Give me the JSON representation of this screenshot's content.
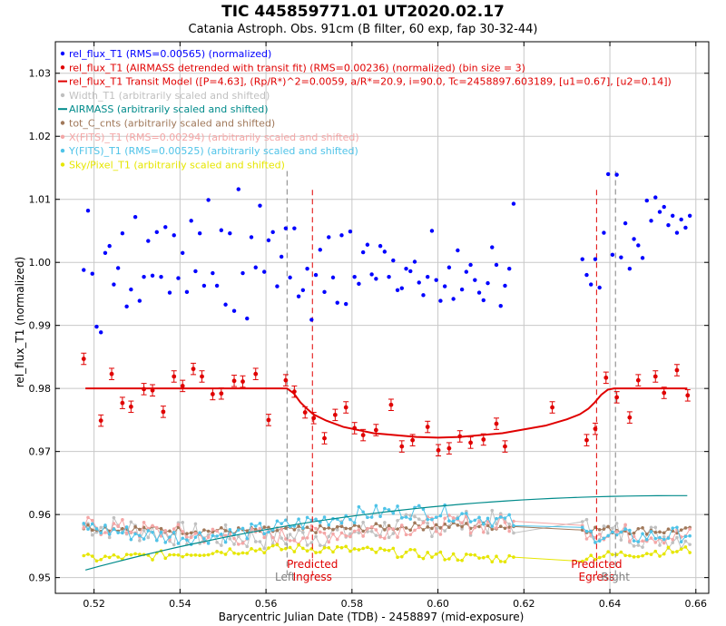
{
  "chart_data": {
    "type": "scatter",
    "title": "TIC 445859771.01    UT2020.02.17",
    "subtitle": "Catania Astroph. Obs. 91cm (B filter, 60 exp, fap 30-32-44)",
    "xlabel": "Barycentric Julian Date (TDB) - 2458897 (mid-exposure)",
    "ylabel": "rel_flux_T1 (normalized)",
    "xlim": [
      0.511,
      0.663
    ],
    "ylim": [
      0.9475,
      1.035
    ],
    "x_ticks": [
      "0.52",
      "0.54",
      "0.56",
      "0.58",
      "0.60",
      "0.62",
      "0.64",
      "0.66"
    ],
    "y_ticks": [
      "0.95",
      "0.96",
      "0.97",
      "0.98",
      "0.99",
      "1.00",
      "1.01",
      "1.02",
      "1.03"
    ],
    "grid": true,
    "legend_position": "top-left",
    "legend": [
      {
        "label": "rel_flux_T1 (RMS=0.00565) (normalized)",
        "color": "#0000ff",
        "marker": "dot"
      },
      {
        "label": "rel_flux_T1 (AIRMASS detrended with transit fit) (RMS=0.00236) (normalized) (bin size = 3)",
        "color": "#e00000",
        "marker": "dot"
      },
      {
        "label": "rel_flux_T1 Transit Model ([P=4.63], (Rp/R*)^2=0.0059, a/R*=20.9, i=90.0, Tc=2458897.603189, [u1=0.67], [u2=0.14])",
        "color": "#e00000",
        "marker": "line"
      },
      {
        "label": "Width_T1 (arbitrarily scaled and shifted)",
        "color": "#c0c0c0",
        "marker": "dot"
      },
      {
        "label": "AIRMASS (arbitrarily scaled and shifted)",
        "color": "#008b8b",
        "marker": "line"
      },
      {
        "label": "tot_C_cnts (arbitrarily scaled and shifted)",
        "color": "#a0785a",
        "marker": "dot"
      },
      {
        "label": "X(FITS)_T1 (RMS=0.00294) (arbitrarily scaled and shifted)",
        "color": "#f4a6a6",
        "marker": "dot"
      },
      {
        "label": "Y(FITS)_T1 (RMS=0.00525) (arbitrarily scaled and shifted)",
        "color": "#4fc3e8",
        "marker": "dot"
      },
      {
        "label": "Sky/Pixel_T1 (arbitrarily scaled and shifted)",
        "color": "#e6e600",
        "marker": "dot"
      }
    ],
    "markers": [
      {
        "x": 0.5649,
        "label": "Left",
        "color": "#808080",
        "label_position": "bottom"
      },
      {
        "x": 0.5708,
        "label": "Predicted Ingress",
        "color": "#e00000",
        "label_position": "bottom"
      },
      {
        "x": 0.6369,
        "label": "Predicted Egress",
        "color": "#e00000",
        "label_position": "bottom"
      },
      {
        "x": 0.6413,
        "label": "Right",
        "color": "#808080",
        "label_position": "bottom"
      }
    ],
    "transit_model": {
      "baseline": 0.98,
      "bottom": 0.9722,
      "x": [
        0.518,
        0.5649,
        0.5665,
        0.568,
        0.5695,
        0.571,
        0.574,
        0.578,
        0.585,
        0.595,
        0.6,
        0.605,
        0.615,
        0.625,
        0.63,
        0.633,
        0.635,
        0.6365,
        0.638,
        0.6395,
        0.641,
        0.6413,
        0.658
      ],
      "y": [
        0.98,
        0.98,
        0.9792,
        0.9778,
        0.9768,
        0.9759,
        0.9749,
        0.9739,
        0.9729,
        0.9723,
        0.9722,
        0.9723,
        0.9729,
        0.9741,
        0.9751,
        0.9759,
        0.9768,
        0.9778,
        0.979,
        0.9798,
        0.98,
        0.98,
        0.98
      ]
    },
    "binned_points": {
      "x": [
        0.5176,
        0.5216,
        0.5241,
        0.5266,
        0.5286,
        0.5316,
        0.5336,
        0.5361,
        0.5386,
        0.5406,
        0.5431,
        0.5451,
        0.5476,
        0.5496,
        0.5526,
        0.5546,
        0.5576,
        0.5606,
        0.5646,
        0.5666,
        0.5691,
        0.5711,
        0.5736,
        0.5761,
        0.5786,
        0.5806,
        0.5826,
        0.5856,
        0.5891,
        0.5916,
        0.5941,
        0.5976,
        0.6001,
        0.6026,
        0.6051,
        0.6076,
        0.6106,
        0.6136,
        0.6156,
        0.6266,
        0.6346,
        0.6366,
        0.6391,
        0.6416,
        0.6446,
        0.6466,
        0.6506,
        0.6526,
        0.6556,
        0.6581
      ],
      "y": [
        0.9847,
        0.9749,
        0.9823,
        0.9777,
        0.9771,
        0.9799,
        0.9797,
        0.9763,
        0.9819,
        0.9804,
        0.9831,
        0.9819,
        0.9791,
        0.9792,
        0.9812,
        0.9811,
        0.9823,
        0.975,
        0.9813,
        0.9795,
        0.9762,
        0.9753,
        0.9721,
        0.9758,
        0.977,
        0.9737,
        0.9726,
        0.9734,
        0.9774,
        0.9708,
        0.9718,
        0.9739,
        0.9702,
        0.9705,
        0.9724,
        0.9714,
        0.9719,
        0.9744,
        0.9708,
        0.977,
        0.9718,
        0.9736,
        0.9817,
        0.9786,
        0.9754,
        0.9813,
        0.9819,
        0.9793,
        0.9829,
        0.9789
      ],
      "err": 0.0009
    },
    "raw_flux": {
      "x": [
        0.5176,
        0.5186,
        0.5196,
        0.5206,
        0.5216,
        0.5226,
        0.5236,
        0.5246,
        0.5256,
        0.5266,
        0.5276,
        0.5286,
        0.5296,
        0.5306,
        0.5316,
        0.5326,
        0.5336,
        0.5346,
        0.5356,
        0.5366,
        0.5376,
        0.5386,
        0.5396,
        0.5406,
        0.5416,
        0.5426,
        0.5436,
        0.5446,
        0.5456,
        0.5466,
        0.5476,
        0.5486,
        0.5496,
        0.5506,
        0.5516,
        0.5526,
        0.5536,
        0.5546,
        0.5556,
        0.5566,
        0.5576,
        0.5586,
        0.5596,
        0.5606,
        0.5616,
        0.5626,
        0.5636,
        0.5646,
        0.5656,
        0.5666,
        0.5676,
        0.5686,
        0.5696,
        0.5706,
        0.5716,
        0.5726,
        0.5736,
        0.5746,
        0.5756,
        0.5766,
        0.5776,
        0.5786,
        0.5796,
        0.5806,
        0.5816,
        0.5826,
        0.5836,
        0.5846,
        0.5856,
        0.5866,
        0.5876,
        0.5886,
        0.5896,
        0.5906,
        0.5916,
        0.5926,
        0.5936,
        0.5946,
        0.5956,
        0.5966,
        0.5976,
        0.5986,
        0.5996,
        0.6006,
        0.6016,
        0.6026,
        0.6036,
        0.6046,
        0.6056,
        0.6066,
        0.6076,
        0.6086,
        0.6096,
        0.6106,
        0.6116,
        0.6126,
        0.6136,
        0.6146,
        0.6156,
        0.6166,
        0.6176,
        0.6336,
        0.6346,
        0.6356,
        0.6366,
        0.6376,
        0.6386,
        0.6396,
        0.6406,
        0.6416,
        0.6426,
        0.6436,
        0.6446,
        0.6456,
        0.6466,
        0.6476,
        0.6486,
        0.6496,
        0.6506,
        0.6516,
        0.6526,
        0.6536,
        0.6546,
        0.6556,
        0.6566,
        0.6576,
        0.6586
      ],
      "y": [
        0.9988,
        1.0082,
        0.9982,
        0.9898,
        0.9889,
        1.0015,
        1.0026,
        0.9965,
        0.9991,
        1.0046,
        0.993,
        0.9957,
        1.0072,
        0.9939,
        0.9977,
        1.0034,
        0.9979,
        1.0048,
        0.9977,
        1.0056,
        0.9952,
        1.0043,
        0.9975,
        1.0015,
        0.9953,
        1.0066,
        0.9986,
        1.0046,
        0.9963,
        1.0099,
        0.9983,
        0.9963,
        1.0051,
        0.9933,
        1.0046,
        0.9923,
        1.0116,
        0.9983,
        0.9911,
        1.004,
        0.9992,
        1.009,
        0.9985,
        1.0035,
        1.0048,
        0.9962,
        1.0009,
        1.0054,
        0.9976,
        1.0054,
        0.9946,
        0.9956,
        0.999,
        0.9909,
        0.998,
        1.002,
        0.9953,
        1.004,
        0.9976,
        0.9936,
        1.0043,
        0.9934,
        1.0049,
        0.9977,
        0.9966,
        1.0016,
        1.0028,
        0.9981,
        0.9974,
        1.0026,
        1.0017,
        0.9977,
        1.0003,
        0.9956,
        0.9959,
        0.999,
        0.9986,
        1.0001,
        0.9968,
        0.9948,
        0.9977,
        1.005,
        0.9972,
        0.9939,
        0.9962,
        0.9992,
        0.9942,
        1.0019,
        0.9957,
        0.9985,
        0.9996,
        0.9972,
        0.9952,
        0.994,
        0.9967,
        1.0024,
        0.9996,
        0.9931,
        0.9963,
        0.999,
        1.0093,
        1.0005,
        0.998,
        0.9965,
        1.0005,
        0.996,
        1.0047,
        1.014,
        1.0012,
        1.0139,
        1.0008,
        1.0062,
        0.999,
        1.0037,
        1.0027,
        1.0007,
        1.0098,
        1.0066,
        1.0103,
        1.008,
        1.0088,
        1.0059,
        1.0074,
        1.0047,
        1.0068,
        1.0055,
        1.0074
      ]
    }
  }
}
